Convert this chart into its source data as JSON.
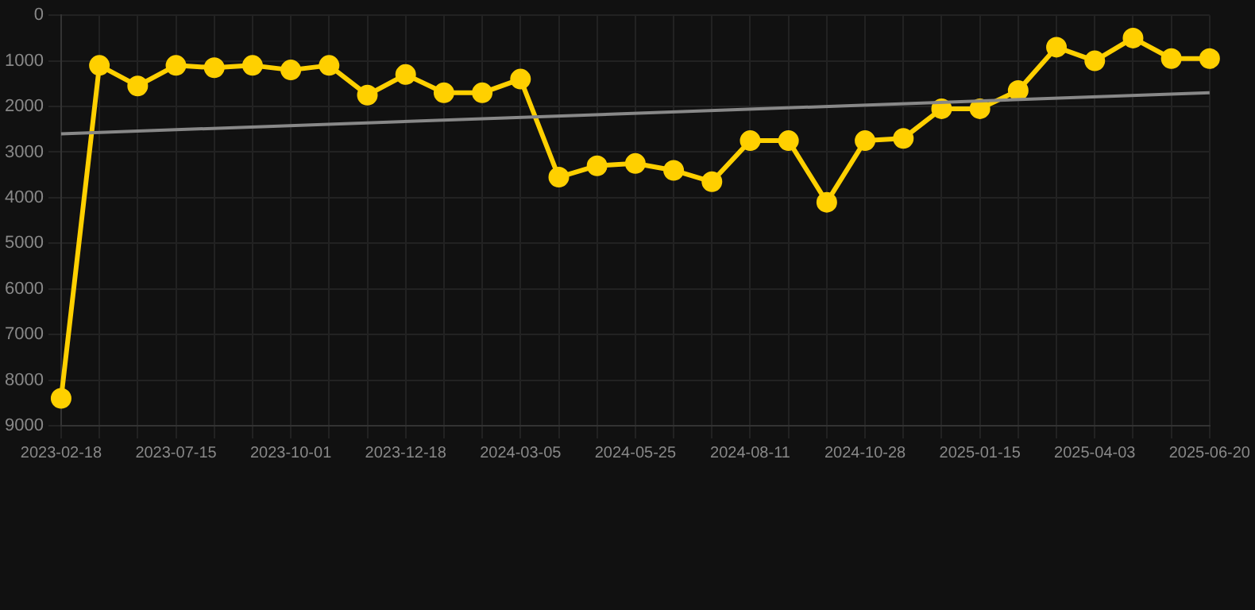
{
  "chart_data": {
    "type": "line",
    "categories": [
      "2023-02-18",
      null,
      null,
      "2023-07-15",
      null,
      null,
      "2023-10-01",
      null,
      null,
      "2023-12-18",
      null,
      null,
      "2024-03-05",
      null,
      null,
      "2024-05-25",
      null,
      null,
      "2024-08-11",
      null,
      null,
      "2024-10-28",
      null,
      null,
      "2025-01-15",
      null,
      null,
      "2025-04-03",
      null,
      null,
      "2025-06-20"
    ],
    "series": [
      {
        "color": "#ffd000",
        "marker": "circle",
        "values": [
          8400,
          1100,
          1550,
          1100,
          1150,
          1100,
          1200,
          1100,
          1750,
          1300,
          1700,
          1700,
          1400,
          3550,
          3300,
          3250,
          3400,
          3650,
          2750,
          2750,
          4100,
          2750,
          2700,
          2050,
          2050,
          1650,
          700,
          1000,
          500,
          950,
          950
        ]
      },
      {
        "type": "line",
        "color": "#888888",
        "marker": "none",
        "values": [
          2600,
          null,
          null,
          null,
          null,
          null,
          null,
          null,
          null,
          null,
          null,
          null,
          null,
          null,
          null,
          null,
          null,
          null,
          null,
          null,
          null,
          null,
          null,
          null,
          null,
          null,
          null,
          null,
          null,
          null,
          1700
        ]
      }
    ],
    "ylim": [
      9000,
      0
    ],
    "yticks": [
      0,
      1000,
      2000,
      3000,
      4000,
      5000,
      6000,
      7000,
      8000,
      9000
    ],
    "grid": true,
    "legend": false
  }
}
